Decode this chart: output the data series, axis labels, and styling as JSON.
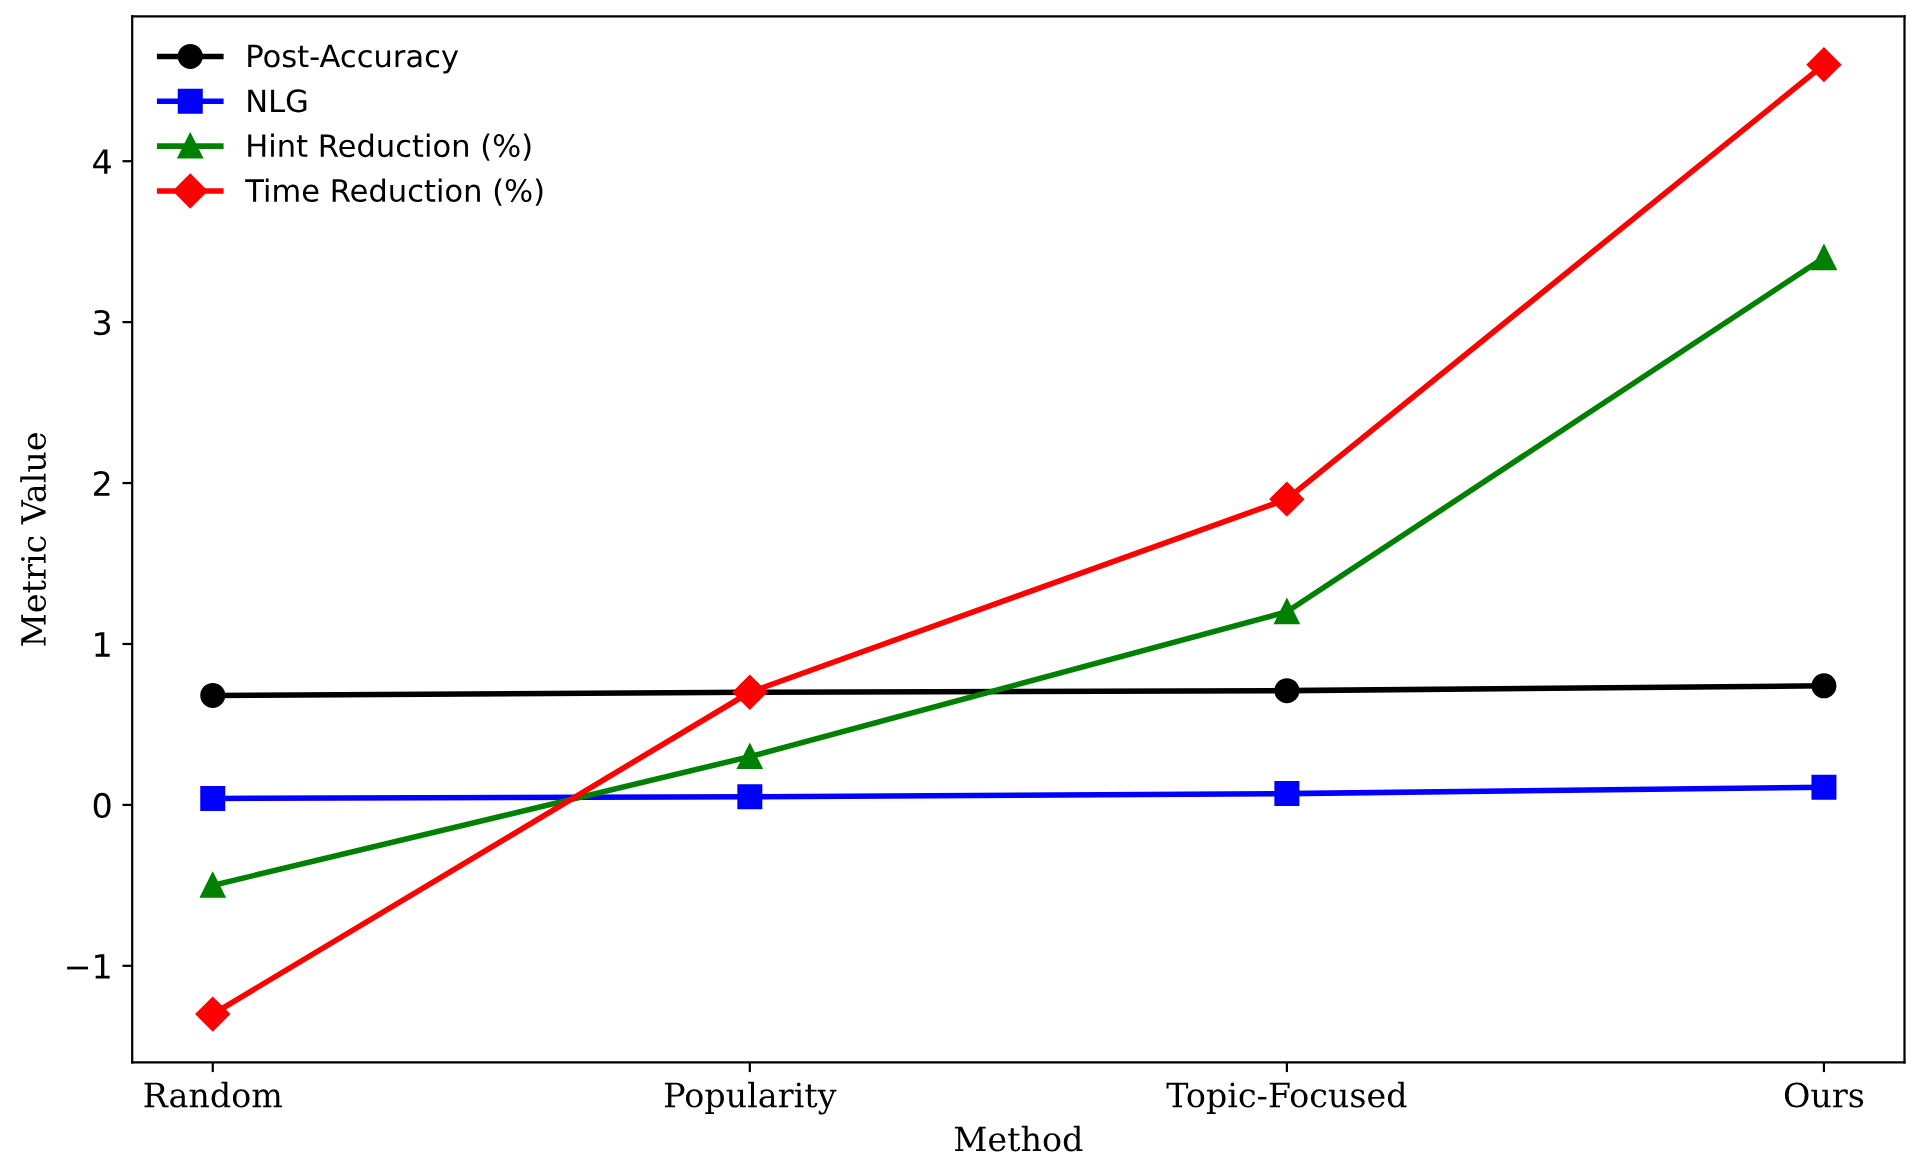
{
  "chart_data": {
    "type": "line",
    "xlabel": "Method",
    "ylabel": "Metric Value",
    "categories": [
      "Random",
      "Popularity",
      "Topic-Focused",
      "Ours"
    ],
    "series": [
      {
        "name": "Post-Accuracy",
        "color": "#000000",
        "marker": "circle",
        "values": [
          0.68,
          0.7,
          0.71,
          0.74
        ]
      },
      {
        "name": "NLG",
        "color": "#0000ff",
        "marker": "square",
        "values": [
          0.04,
          0.05,
          0.07,
          0.11
        ]
      },
      {
        "name": "Hint Reduction (%)",
        "color": "#008000",
        "marker": "triangle",
        "values": [
          -0.5,
          0.3,
          1.2,
          3.4
        ]
      },
      {
        "name": "Time Reduction (%)",
        "color": "#ff0000",
        "marker": "diamond",
        "values": [
          -1.3,
          0.7,
          1.9,
          4.6
        ]
      }
    ],
    "ylim": [
      -1.6,
      4.9
    ],
    "yticks": [
      {
        "value": -1,
        "label": "−1"
      },
      0,
      1,
      2,
      3,
      4
    ],
    "legend": "top left",
    "grid": false,
    "line_style": "solid"
  }
}
